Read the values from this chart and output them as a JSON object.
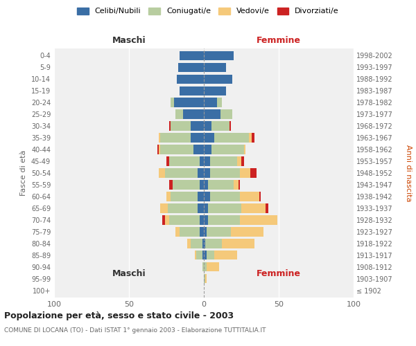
{
  "age_groups": [
    "100+",
    "95-99",
    "90-94",
    "85-89",
    "80-84",
    "75-79",
    "70-74",
    "65-69",
    "60-64",
    "55-59",
    "50-54",
    "45-49",
    "40-44",
    "35-39",
    "30-34",
    "25-29",
    "20-24",
    "15-19",
    "10-14",
    "5-9",
    "0-4"
  ],
  "birth_years": [
    "≤ 1902",
    "1903-1907",
    "1908-1912",
    "1913-1917",
    "1918-1922",
    "1923-1927",
    "1928-1932",
    "1933-1937",
    "1938-1942",
    "1943-1947",
    "1948-1952",
    "1953-1957",
    "1958-1962",
    "1963-1967",
    "1968-1972",
    "1973-1977",
    "1978-1982",
    "1983-1987",
    "1988-1992",
    "1993-1997",
    "1998-2002"
  ],
  "maschi": {
    "celibi": [
      0,
      0,
      0,
      1,
      1,
      3,
      3,
      4,
      4,
      3,
      4,
      3,
      7,
      9,
      9,
      14,
      20,
      16,
      18,
      17,
      16
    ],
    "coniugati": [
      0,
      0,
      1,
      4,
      8,
      13,
      20,
      20,
      18,
      18,
      22,
      20,
      22,
      20,
      13,
      5,
      2,
      0,
      0,
      0,
      0
    ],
    "vedovi": [
      0,
      0,
      0,
      1,
      2,
      3,
      3,
      5,
      3,
      0,
      4,
      0,
      1,
      1,
      0,
      0,
      0,
      0,
      0,
      0,
      0
    ],
    "divorziati": [
      0,
      0,
      0,
      0,
      0,
      0,
      2,
      0,
      0,
      2,
      0,
      2,
      1,
      0,
      1,
      0,
      0,
      0,
      0,
      0,
      0
    ]
  },
  "femmine": {
    "nubili": [
      0,
      0,
      0,
      2,
      1,
      2,
      3,
      3,
      4,
      3,
      4,
      4,
      5,
      7,
      5,
      11,
      9,
      15,
      19,
      15,
      20
    ],
    "coniugate": [
      0,
      1,
      2,
      5,
      11,
      16,
      21,
      22,
      20,
      17,
      20,
      18,
      22,
      23,
      12,
      8,
      3,
      0,
      0,
      0,
      0
    ],
    "vedove": [
      0,
      1,
      8,
      15,
      22,
      22,
      25,
      16,
      13,
      3,
      7,
      3,
      1,
      2,
      0,
      0,
      0,
      0,
      0,
      0,
      0
    ],
    "divorziate": [
      0,
      0,
      0,
      0,
      0,
      0,
      0,
      2,
      1,
      1,
      4,
      2,
      0,
      2,
      1,
      0,
      0,
      0,
      0,
      0,
      0
    ]
  },
  "colors": {
    "celibi": "#3a6ea5",
    "coniugati": "#b8cda0",
    "vedovi": "#f5c97a",
    "divorziati": "#cc2222"
  },
  "xlim": 100,
  "title": "Popolazione per età, sesso e stato civile - 2003",
  "subtitle": "COMUNE DI LOCANA (TO) - Dati ISTAT 1° gennaio 2003 - Elaborazione TUTTITALIA.IT",
  "ylabel_left": "Fasce di età",
  "ylabel_right": "Anni di nascita",
  "xlabel_maschi": "Maschi",
  "xlabel_femmine": "Femmine",
  "legend_labels": [
    "Celibi/Nubili",
    "Coniugati/e",
    "Vedovi/e",
    "Divorziati/e"
  ],
  "bg_color": "#f0f0f0"
}
